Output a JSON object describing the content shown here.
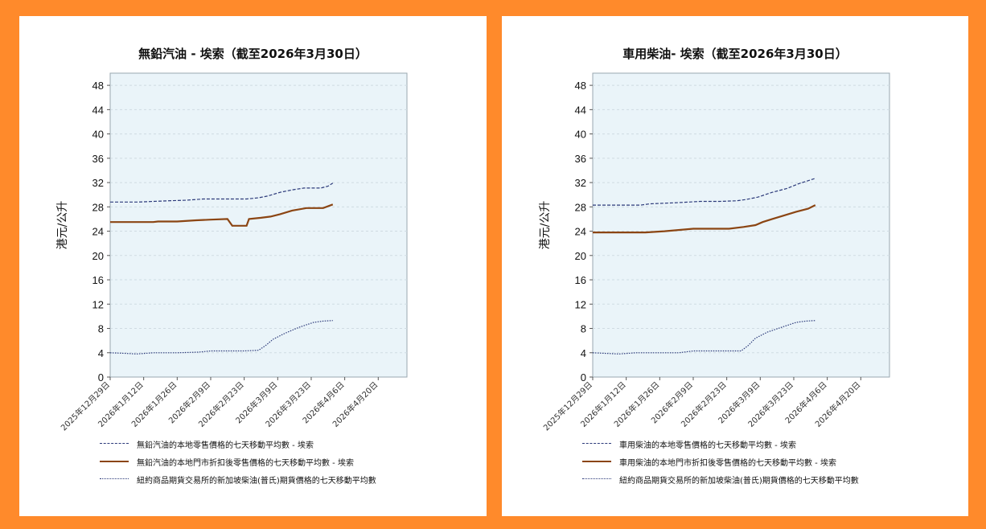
{
  "chart_data": [
    {
      "type": "line",
      "title": "無鉛汽油 - 埃索（截至2026年3月30日）",
      "ylabel": "港元/公升",
      "xlabel": "",
      "ylim": [
        0,
        50
      ],
      "yticks": [
        0,
        4,
        8,
        12,
        16,
        20,
        24,
        28,
        32,
        36,
        40,
        44,
        48
      ],
      "xlim": [
        "2025-12-29",
        "2026-05-02"
      ],
      "xtick_labels": [
        "2025年12月29日",
        "2026年1月12日",
        "2026年1月26日",
        "2026年2月9日",
        "2026年2月23日",
        "2026年3月9日",
        "2026年3月23日",
        "2026年4月6日",
        "2026年4月20日"
      ],
      "xtick_dates": [
        "2025-12-29",
        "2026-01-12",
        "2026-01-26",
        "2026-02-09",
        "2026-02-23",
        "2026-03-09",
        "2026-03-23",
        "2026-04-06",
        "2026-04-20"
      ],
      "grid": "horizontal dashed",
      "legend_placement": "below",
      "series": [
        {
          "name": "無鉛汽油的本地零售價格的七天移動平均數   - 埃索",
          "style": "dashed",
          "color": "#2c3a7a",
          "points": [
            [
              "2025-12-29",
              28.8
            ],
            [
              "2026-01-10",
              28.8
            ],
            [
              "2026-01-16",
              28.9
            ],
            [
              "2026-01-22",
              29.0
            ],
            [
              "2026-01-30",
              29.1
            ],
            [
              "2026-02-06",
              29.3
            ],
            [
              "2026-02-14",
              29.3
            ],
            [
              "2026-02-24",
              29.3
            ],
            [
              "2026-03-01",
              29.5
            ],
            [
              "2026-03-05",
              29.8
            ],
            [
              "2026-03-10",
              30.4
            ],
            [
              "2026-03-15",
              30.8
            ],
            [
              "2026-03-20",
              31.1
            ],
            [
              "2026-03-27",
              31.1
            ],
            [
              "2026-03-30",
              31.4
            ],
            [
              "2026-04-01",
              31.9
            ]
          ]
        },
        {
          "name": "無鉛汽油的本地門市折扣後零售價格的七天移動平均數   - 埃索",
          "style": "solid",
          "color": "#8b4513",
          "points": [
            [
              "2025-12-29",
              25.5
            ],
            [
              "2026-01-16",
              25.5
            ],
            [
              "2026-01-18",
              25.6
            ],
            [
              "2026-01-26",
              25.6
            ],
            [
              "2026-02-03",
              25.8
            ],
            [
              "2026-02-09",
              25.9
            ],
            [
              "2026-02-16",
              26.0
            ],
            [
              "2026-02-18",
              24.9
            ],
            [
              "2026-02-24",
              24.9
            ],
            [
              "2026-02-25",
              26.0
            ],
            [
              "2026-03-02",
              26.2
            ],
            [
              "2026-03-06",
              26.4
            ],
            [
              "2026-03-10",
              26.8
            ],
            [
              "2026-03-15",
              27.4
            ],
            [
              "2026-03-21",
              27.8
            ],
            [
              "2026-03-28",
              27.8
            ],
            [
              "2026-04-01",
              28.4
            ]
          ]
        },
        {
          "name": "紐約商品期貨交易所的新加坡柴油(普氏)期貨價格的七天移動平均數",
          "style": "dotted",
          "color": "#2c3a7a",
          "points": [
            [
              "2025-12-29",
              4.0
            ],
            [
              "2026-01-04",
              3.9
            ],
            [
              "2026-01-09",
              3.8
            ],
            [
              "2026-01-16",
              4.0
            ],
            [
              "2026-01-26",
              4.0
            ],
            [
              "2026-02-04",
              4.1
            ],
            [
              "2026-02-09",
              4.3
            ],
            [
              "2026-02-23",
              4.3
            ],
            [
              "2026-03-01",
              4.4
            ],
            [
              "2026-03-04",
              5.2
            ],
            [
              "2026-03-07",
              6.2
            ],
            [
              "2026-03-12",
              7.2
            ],
            [
              "2026-03-18",
              8.2
            ],
            [
              "2026-03-24",
              9.0
            ],
            [
              "2026-03-28",
              9.2
            ],
            [
              "2026-04-01",
              9.3
            ]
          ]
        }
      ]
    },
    {
      "type": "line",
      "title": "車用柴油- 埃索（截至2026年3月30日）",
      "ylabel": "港元/公升",
      "xlabel": "",
      "ylim": [
        0,
        50
      ],
      "yticks": [
        0,
        4,
        8,
        12,
        16,
        20,
        24,
        28,
        32,
        36,
        40,
        44,
        48
      ],
      "xlim": [
        "2025-12-29",
        "2026-05-02"
      ],
      "xtick_labels": [
        "2025年12月29日",
        "2026年1月12日",
        "2026年1月26日",
        "2026年2月9日",
        "2026年2月23日",
        "2026年3月9日",
        "2026年3月23日",
        "2026年4月6日",
        "2026年4月20日"
      ],
      "xtick_dates": [
        "2025-12-29",
        "2026-01-12",
        "2026-01-26",
        "2026-02-09",
        "2026-02-23",
        "2026-03-09",
        "2026-03-23",
        "2026-04-06",
        "2026-04-20"
      ],
      "grid": "horizontal dashed",
      "legend_placement": "below",
      "series": [
        {
          "name": "車用柴油的本地零售價格的七天移動平均數   - 埃索",
          "style": "dashed",
          "color": "#2c3a7a",
          "points": [
            [
              "2025-12-29",
              28.3
            ],
            [
              "2026-01-18",
              28.3
            ],
            [
              "2026-01-22",
              28.5
            ],
            [
              "2026-02-03",
              28.7
            ],
            [
              "2026-02-12",
              28.9
            ],
            [
              "2026-02-20",
              28.9
            ],
            [
              "2026-02-27",
              29.0
            ],
            [
              "2026-03-03",
              29.2
            ],
            [
              "2026-03-08",
              29.6
            ],
            [
              "2026-03-14",
              30.4
            ],
            [
              "2026-03-20",
              31.0
            ],
            [
              "2026-03-25",
              31.8
            ],
            [
              "2026-04-01",
              32.7
            ]
          ]
        },
        {
          "name": "車用柴油的本地門市折扣後零售價格的七天移動平均數   - 埃索",
          "style": "solid",
          "color": "#8b4513",
          "points": [
            [
              "2025-12-29",
              23.8
            ],
            [
              "2026-01-20",
              23.8
            ],
            [
              "2026-01-28",
              24.0
            ],
            [
              "2026-02-09",
              24.4
            ],
            [
              "2026-02-24",
              24.4
            ],
            [
              "2026-03-02",
              24.7
            ],
            [
              "2026-03-07",
              25.0
            ],
            [
              "2026-03-10",
              25.5
            ],
            [
              "2026-03-14",
              26.0
            ],
            [
              "2026-03-19",
              26.6
            ],
            [
              "2026-03-24",
              27.2
            ],
            [
              "2026-03-29",
              27.7
            ],
            [
              "2026-04-01",
              28.3
            ]
          ]
        },
        {
          "name": "紐約商品期貨交易所的新加坡柴油(普氏)期貨價格的七天移動平均數",
          "style": "dotted",
          "color": "#2c3a7a",
          "points": [
            [
              "2025-12-29",
              4.0
            ],
            [
              "2026-01-09",
              3.8
            ],
            [
              "2026-01-16",
              4.0
            ],
            [
              "2026-02-03",
              4.0
            ],
            [
              "2026-02-09",
              4.3
            ],
            [
              "2026-02-23",
              4.3
            ],
            [
              "2026-03-01",
              4.3
            ],
            [
              "2026-03-04",
              5.2
            ],
            [
              "2026-03-07",
              6.4
            ],
            [
              "2026-03-12",
              7.4
            ],
            [
              "2026-03-18",
              8.2
            ],
            [
              "2026-03-24",
              9.0
            ],
            [
              "2026-03-28",
              9.2
            ],
            [
              "2026-04-01",
              9.3
            ]
          ]
        }
      ]
    }
  ]
}
